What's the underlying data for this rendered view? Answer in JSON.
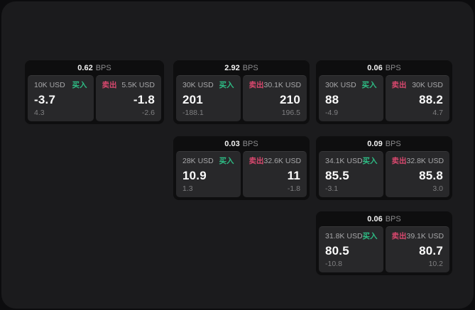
{
  "app": {
    "unit_label": "BPS"
  },
  "labels": {
    "buy": "买入",
    "sell": "卖出"
  },
  "colors": {
    "buy_green": "#2ebd85",
    "sell_red": "#d9486e",
    "panel_bg": "#1b1b1d",
    "card_bg": "#0e0e0f",
    "tile_bg": "#28282a"
  },
  "cards": [
    {
      "bps": "0.62",
      "col": 1,
      "row": 1,
      "buy": {
        "amount": "10K USD",
        "price": "-3.7",
        "delta": "4.3"
      },
      "sell": {
        "amount": "5.5K USD",
        "price": "-1.8",
        "delta": "-2.6"
      }
    },
    {
      "bps": "2.92",
      "col": 2,
      "row": 1,
      "buy": {
        "amount": "30K USD",
        "price": "201",
        "delta": "-188.1"
      },
      "sell": {
        "amount": "30.1K USD",
        "price": "210",
        "delta": "196.5"
      }
    },
    {
      "bps": "0.06",
      "col": 3,
      "row": 1,
      "buy": {
        "amount": "30K USD",
        "price": "88",
        "delta": "-4.9"
      },
      "sell": {
        "amount": "30K USD",
        "price": "88.2",
        "delta": "4.7"
      }
    },
    {
      "bps": "0.03",
      "col": 2,
      "row": 2,
      "buy": {
        "amount": "28K USD",
        "price": "10.9",
        "delta": "1.3"
      },
      "sell": {
        "amount": "32.6K USD",
        "price": "11",
        "delta": "-1.8"
      }
    },
    {
      "bps": "0.09",
      "col": 3,
      "row": 2,
      "buy": {
        "amount": "34.1K USD",
        "price": "85.5",
        "delta": "-3.1"
      },
      "sell": {
        "amount": "32.8K USD",
        "price": "85.8",
        "delta": "3.0"
      }
    },
    {
      "bps": "0.06",
      "col": 3,
      "row": 3,
      "buy": {
        "amount": "31.8K USD",
        "price": "80.5",
        "delta": "-10.8"
      },
      "sell": {
        "amount": "39.1K USD",
        "price": "80.7",
        "delta": "10.2"
      }
    }
  ]
}
